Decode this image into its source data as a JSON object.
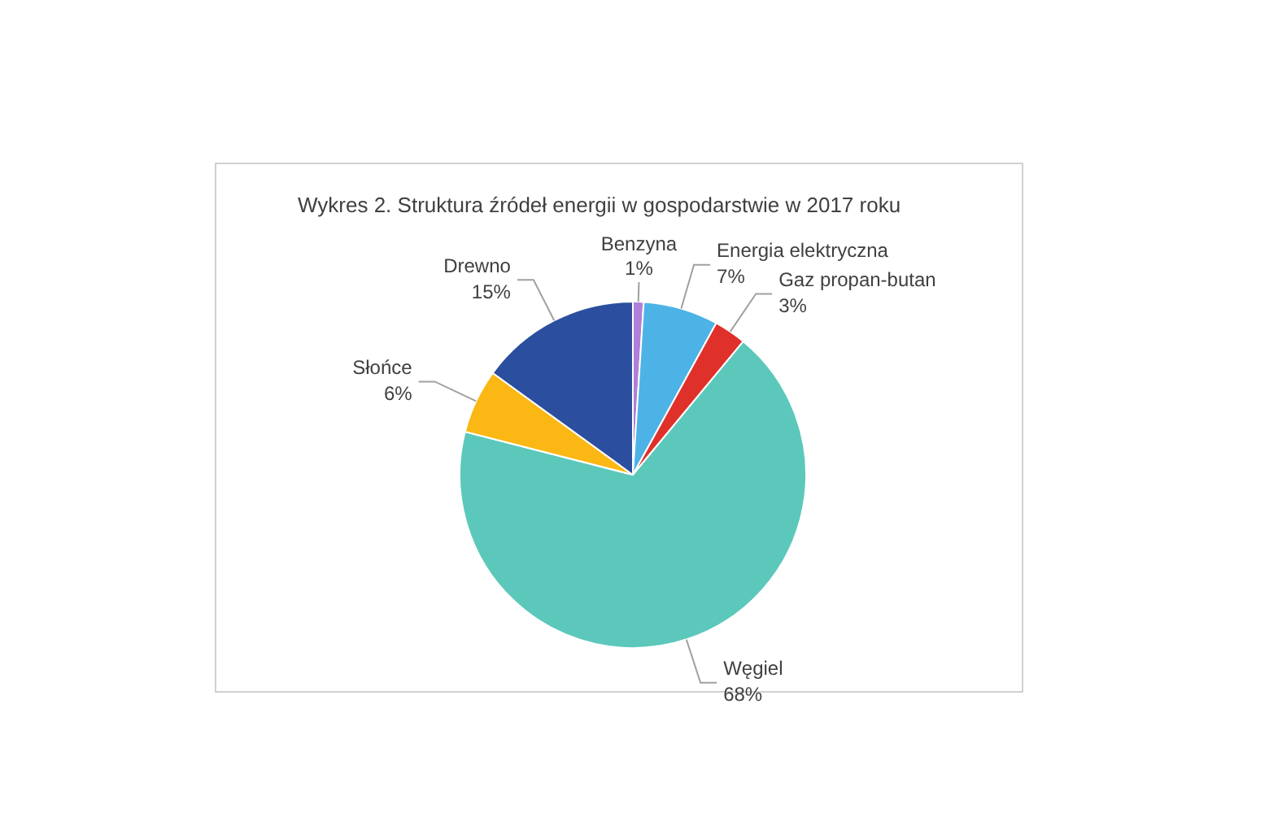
{
  "chart_data": {
    "type": "pie",
    "title": "Wykres 2. Struktura źródeł energii w gospodarstwie w 2017 roku",
    "categories": [
      "Benzyna",
      "Energia elektryczna",
      "Gaz propan-butan",
      "Węgiel",
      "Słońce",
      "Drewno"
    ],
    "values": [
      1,
      7,
      3,
      68,
      6,
      15
    ],
    "value_labels": [
      "1%",
      "7%",
      "3%",
      "68%",
      "6%",
      "15%"
    ],
    "colors": [
      "#b07fd8",
      "#4db3e6",
      "#e0302a",
      "#5bc8bb",
      "#fbb714",
      "#2b4f9e"
    ],
    "legend": false
  }
}
